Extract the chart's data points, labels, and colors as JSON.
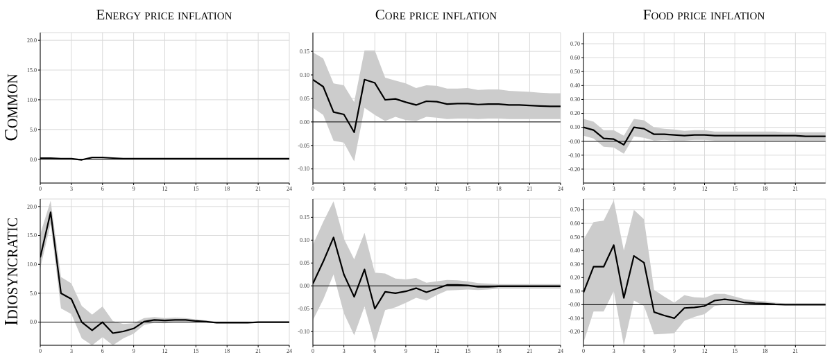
{
  "chart_data": [
    {
      "type": "line",
      "title": "Energy price inflation",
      "ylabel": "Common",
      "x": [
        0,
        1,
        2,
        3,
        4,
        5,
        6,
        7,
        8,
        9,
        10,
        11,
        12,
        13,
        14,
        15,
        16,
        17,
        18,
        19,
        20,
        21,
        22,
        23,
        24
      ],
      "xlim": [
        0,
        24
      ],
      "xticks": [
        0,
        3,
        6,
        9,
        12,
        15,
        18,
        21,
        24
      ],
      "ylim": [
        -4,
        21.3
      ],
      "yticks": [
        {
          "value": 0,
          "label": "0.0"
        },
        {
          "value": 5,
          "label": "5.0"
        },
        {
          "value": 10,
          "label": "10.0"
        },
        {
          "value": 15,
          "label": "15.0"
        },
        {
          "value": 20,
          "label": "20.0"
        }
      ],
      "grid": true,
      "ref_lines": [
        {
          "axis": "y",
          "value": 0,
          "color": "#000000"
        }
      ],
      "series": [
        {
          "color": "#000000",
          "values": [
            0.2,
            0.2,
            0.1,
            0.1,
            -0.1,
            0.3,
            0.3,
            0.2,
            0.1,
            0.1,
            0.1,
            0.1,
            0.1,
            0.1,
            0.1,
            0.1,
            0.1,
            0.1,
            0.1,
            0.1,
            0.1,
            0.1,
            0.1,
            0.1,
            0.1
          ]
        }
      ]
    },
    {
      "type": "line",
      "title": "Core price inflation",
      "x": [
        0,
        1,
        2,
        3,
        4,
        5,
        6,
        7,
        8,
        9,
        10,
        11,
        12,
        13,
        14,
        15,
        16,
        17,
        18,
        19,
        20,
        21,
        22,
        23,
        24
      ],
      "xlim": [
        0,
        24
      ],
      "xticks": [
        0,
        3,
        6,
        9,
        12,
        15,
        18,
        21,
        24
      ],
      "ylim": [
        -0.13,
        0.19
      ],
      "yticks": [
        {
          "value": -0.1,
          "label": "-0.10"
        },
        {
          "value": -0.05,
          "label": "-0.05"
        },
        {
          "value": 0,
          "label": "0.00"
        },
        {
          "value": 0.05,
          "label": "0.05"
        },
        {
          "value": 0.1,
          "label": "0.10"
        },
        {
          "value": 0.15,
          "label": "0.15"
        }
      ],
      "grid": true,
      "ref_lines": [
        {
          "axis": "y",
          "value": 0,
          "color": "#000000"
        }
      ],
      "series": [
        {
          "color": "#000000",
          "values": [
            0.09,
            0.075,
            0.021,
            0.016,
            -0.022,
            0.09,
            0.083,
            0.047,
            0.049,
            0.042,
            0.036,
            0.044,
            0.043,
            0.038,
            0.039,
            0.039,
            0.037,
            0.038,
            0.038,
            0.036,
            0.036,
            0.035,
            0.034,
            0.033,
            0.033
          ],
          "lower": [
            0.03,
            0.015,
            -0.04,
            -0.044,
            -0.084,
            0.03,
            0.015,
            0.002,
            0.011,
            0.004,
            0.002,
            0.011,
            0.009,
            0.006,
            0.007,
            0.007,
            0.006,
            0.007,
            0.007,
            0.006,
            0.006,
            0.006,
            0.006,
            0.006,
            0.006
          ],
          "upper": [
            0.148,
            0.135,
            0.082,
            0.078,
            0.042,
            0.152,
            0.152,
            0.094,
            0.088,
            0.082,
            0.072,
            0.078,
            0.077,
            0.071,
            0.071,
            0.072,
            0.068,
            0.069,
            0.069,
            0.066,
            0.065,
            0.064,
            0.062,
            0.061,
            0.061
          ]
        }
      ]
    },
    {
      "type": "line",
      "title": "Food price inflation",
      "x": [
        0,
        1,
        2,
        3,
        4,
        5,
        6,
        7,
        8,
        9,
        10,
        11,
        12,
        13,
        14,
        15,
        16,
        17,
        18,
        19,
        20,
        21,
        22,
        23,
        24
      ],
      "xlim": [
        0,
        24
      ],
      "xticks": [
        0,
        3,
        6,
        9,
        12,
        15,
        18,
        21
      ],
      "ylim": [
        -0.3,
        0.78
      ],
      "yticks": [
        {
          "value": -0.2,
          "label": "-0.20"
        },
        {
          "value": -0.1,
          "label": "-0.10"
        },
        {
          "value": 0,
          "label": "-0.00"
        },
        {
          "value": 0.1,
          "label": "0.10"
        },
        {
          "value": 0.2,
          "label": "0.20"
        },
        {
          "value": 0.3,
          "label": "0.30"
        },
        {
          "value": 0.4,
          "label": "0.40"
        },
        {
          "value": 0.5,
          "label": "0.50"
        },
        {
          "value": 0.6,
          "label": "0.60"
        },
        {
          "value": 0.7,
          "label": "0.70"
        }
      ],
      "grid": true,
      "ref_lines": [
        {
          "axis": "y",
          "value": 0,
          "color": "#000000"
        }
      ],
      "series": [
        {
          "color": "#000000",
          "values": [
            0.1,
            0.08,
            0.02,
            0.015,
            -0.025,
            0.1,
            0.09,
            0.05,
            0.05,
            0.045,
            0.04,
            0.045,
            0.045,
            0.04,
            0.04,
            0.04,
            0.04,
            0.04,
            0.04,
            0.04,
            0.04,
            0.04,
            0.035,
            0.035,
            0.035
          ],
          "lower": [
            0.04,
            0.02,
            -0.04,
            -0.045,
            -0.09,
            0.035,
            0.025,
            0.005,
            0.01,
            0.005,
            0.005,
            0.01,
            0.01,
            0.005,
            0.005,
            0.005,
            0.005,
            0.005,
            0.005,
            0.005,
            0.005,
            0.005,
            0.005,
            0.005,
            0.005
          ],
          "upper": [
            0.16,
            0.14,
            0.08,
            0.08,
            0.04,
            0.16,
            0.15,
            0.1,
            0.09,
            0.085,
            0.075,
            0.08,
            0.08,
            0.07,
            0.07,
            0.07,
            0.07,
            0.07,
            0.07,
            0.07,
            0.065,
            0.065,
            0.065,
            0.065,
            0.065
          ]
        }
      ]
    },
    {
      "type": "line",
      "ylabel": "Idiosyncratic",
      "x": [
        0,
        1,
        2,
        3,
        4,
        5,
        6,
        7,
        8,
        9,
        10,
        11,
        12,
        13,
        14,
        15,
        16,
        17,
        18,
        19,
        20,
        21,
        22,
        23,
        24
      ],
      "xlim": [
        0,
        24
      ],
      "xticks": [
        0,
        3,
        6,
        9,
        12,
        15,
        18,
        21,
        24
      ],
      "ylim": [
        -4,
        21.3
      ],
      "yticks": [
        {
          "value": 0,
          "label": "0.0"
        },
        {
          "value": 5,
          "label": "5.0"
        },
        {
          "value": 10,
          "label": "10.0"
        },
        {
          "value": 15,
          "label": "15.0"
        },
        {
          "value": 20,
          "label": "20.0"
        }
      ],
      "grid": true,
      "ref_lines": [
        {
          "axis": "y",
          "value": 0,
          "color": "#000000"
        }
      ],
      "series": [
        {
          "color": "#000000",
          "values": [
            11.2,
            19,
            5,
            4,
            0,
            -1.4,
            0,
            -1.9,
            -1.6,
            -1.1,
            0.1,
            0.4,
            0.3,
            0.4,
            0.4,
            0.2,
            0.1,
            -0.1,
            -0.1,
            -0.1,
            -0.1,
            0,
            0,
            0,
            0
          ],
          "lower": [
            9.3,
            17,
            2.4,
            1.4,
            -2.8,
            -4,
            -2.6,
            -4,
            -2.8,
            -2,
            -0.5,
            -0.1,
            -0.2,
            0,
            0,
            0,
            -0.1,
            -0.2,
            -0.2,
            -0.2,
            -0.2,
            -0.1,
            -0.1,
            -0.1,
            -0.1
          ],
          "upper": [
            15.2,
            21,
            7.8,
            6.7,
            2.8,
            1.3,
            2.7,
            0.2,
            -0.3,
            -0.2,
            0.7,
            0.9,
            0.7,
            0.8,
            0.7,
            0.5,
            0.3,
            0.1,
            0.1,
            0.1,
            0.1,
            0.1,
            0.1,
            0.1,
            0.1
          ]
        }
      ]
    },
    {
      "type": "line",
      "x": [
        0,
        1,
        2,
        3,
        4,
        5,
        6,
        7,
        8,
        9,
        10,
        11,
        12,
        13,
        14,
        15,
        16,
        17,
        18,
        19,
        20,
        21,
        22,
        23,
        24
      ],
      "xlim": [
        0,
        24
      ],
      "xticks": [
        0,
        3,
        6,
        9,
        12,
        15,
        18,
        21,
        24
      ],
      "ylim": [
        -0.13,
        0.19
      ],
      "yticks": [
        {
          "value": -0.1,
          "label": "-0.10"
        },
        {
          "value": -0.05,
          "label": "-0.05"
        },
        {
          "value": 0,
          "label": "0.00"
        },
        {
          "value": 0.05,
          "label": "0.05"
        },
        {
          "value": 0.1,
          "label": "0.10"
        },
        {
          "value": 0.15,
          "label": "0.15"
        }
      ],
      "grid": true,
      "ref_lines": [
        {
          "axis": "y",
          "value": 0,
          "color": "#000000"
        }
      ],
      "series": [
        {
          "color": "#000000",
          "values": [
            0.005,
            0.053,
            0.106,
            0.025,
            -0.024,
            0.036,
            -0.05,
            -0.013,
            -0.016,
            -0.012,
            -0.005,
            -0.014,
            -0.006,
            0.002,
            0.002,
            0.001,
            -0.002,
            -0.002,
            -0.001,
            -0.001,
            -0.001,
            -0.001,
            -0.001,
            -0.001,
            -0.001
          ],
          "lower": [
            -0.075,
            -0.03,
            0.025,
            -0.06,
            -0.108,
            -0.045,
            -0.126,
            -0.053,
            -0.047,
            -0.037,
            -0.026,
            -0.032,
            -0.02,
            -0.01,
            -0.009,
            -0.008,
            -0.009,
            -0.008,
            -0.006,
            -0.006,
            -0.006,
            -0.006,
            -0.006,
            -0.006,
            -0.006
          ],
          "upper": [
            0.09,
            0.14,
            0.185,
            0.103,
            0.058,
            0.116,
            0.029,
            0.027,
            0.016,
            0.014,
            0.017,
            0.007,
            0.01,
            0.013,
            0.012,
            0.01,
            0.006,
            0.005,
            0.004,
            0.004,
            0.004,
            0.004,
            0.004,
            0.004,
            0.004
          ]
        }
      ]
    },
    {
      "type": "line",
      "x": [
        0,
        1,
        2,
        3,
        4,
        5,
        6,
        7,
        8,
        9,
        10,
        11,
        12,
        13,
        14,
        15,
        16,
        17,
        18,
        19,
        20,
        21,
        22,
        23,
        24
      ],
      "xlim": [
        0,
        24
      ],
      "xticks": [
        0,
        3,
        6,
        9,
        12,
        15,
        18,
        21
      ],
      "ylim": [
        -0.3,
        0.78
      ],
      "yticks": [
        {
          "value": -0.2,
          "label": "-0.20"
        },
        {
          "value": -0.1,
          "label": "-0.10"
        },
        {
          "value": 0,
          "label": "-0.00"
        },
        {
          "value": 0.1,
          "label": "0.10"
        },
        {
          "value": 0.2,
          "label": "0.20"
        },
        {
          "value": 0.3,
          "label": "0.30"
        },
        {
          "value": 0.4,
          "label": "0.40"
        },
        {
          "value": 0.5,
          "label": "0.50"
        },
        {
          "value": 0.6,
          "label": "0.60"
        },
        {
          "value": 0.7,
          "label": "0.70"
        }
      ],
      "grid": true,
      "ref_lines": [
        {
          "axis": "y",
          "value": 0,
          "color": "#000000"
        }
      ],
      "series": [
        {
          "color": "#000000",
          "values": [
            0.09,
            0.28,
            0.28,
            0.44,
            0.05,
            0.36,
            0.31,
            -0.055,
            -0.08,
            -0.1,
            -0.025,
            -0.02,
            -0.01,
            0.03,
            0.04,
            0.03,
            0.015,
            0.01,
            0.008,
            0.003,
            0,
            0,
            0,
            0,
            0
          ],
          "lower": [
            -0.28,
            -0.05,
            -0.05,
            0.1,
            -0.3,
            0.03,
            -0.01,
            -0.22,
            -0.215,
            -0.21,
            -0.12,
            -0.09,
            -0.07,
            -0.01,
            0,
            0,
            -0.005,
            -0.005,
            -0.005,
            -0.005,
            -0.005,
            -0.005,
            -0.005,
            -0.005,
            -0.005
          ],
          "upper": [
            0.48,
            0.61,
            0.62,
            0.77,
            0.4,
            0.7,
            0.63,
            0.11,
            0.06,
            0.015,
            0.07,
            0.055,
            0.05,
            0.08,
            0.08,
            0.06,
            0.04,
            0.03,
            0.025,
            0.015,
            0.01,
            0.01,
            0.01,
            0.01,
            0.01
          ]
        }
      ]
    }
  ]
}
